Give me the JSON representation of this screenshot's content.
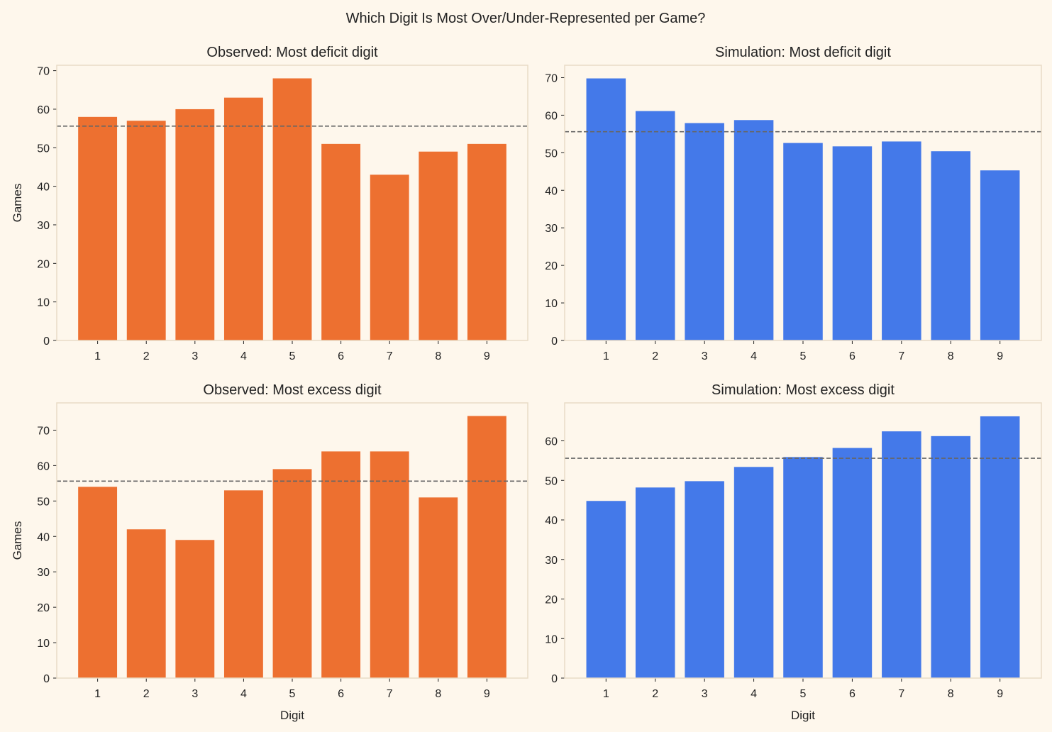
{
  "suptitle": "Which Digit Is Most Over/Under-Represented per Game?",
  "colors": {
    "observed": "#ED7030",
    "simulation": "#4479E9",
    "mean_line": "#666666",
    "background": "#FEF7EC",
    "spine": "#E8DCC6"
  },
  "chart_data": [
    {
      "type": "bar",
      "title": "Observed: Most deficit digit",
      "xlabel": "",
      "ylabel": "Games",
      "categories": [
        "1",
        "2",
        "3",
        "4",
        "5",
        "6",
        "7",
        "8",
        "9"
      ],
      "values": [
        58,
        57,
        60,
        63,
        68,
        51,
        43,
        49,
        51
      ],
      "reference_line": 55.6,
      "ylim": [
        0,
        71.4
      ],
      "yticks": [
        0,
        10,
        20,
        30,
        40,
        50,
        60,
        70
      ],
      "color": "observed"
    },
    {
      "type": "bar",
      "title": "Simulation: Most deficit digit",
      "xlabel": "",
      "ylabel": "",
      "categories": [
        "1",
        "2",
        "3",
        "4",
        "5",
        "6",
        "7",
        "8",
        "9"
      ],
      "values": [
        69.8,
        61.1,
        57.9,
        58.7,
        52.6,
        51.7,
        53.0,
        50.4,
        45.3
      ],
      "reference_line": 55.6,
      "ylim": [
        0,
        73.3
      ],
      "yticks": [
        0,
        10,
        20,
        30,
        40,
        50,
        60,
        70
      ],
      "color": "simulation"
    },
    {
      "type": "bar",
      "title": "Observed: Most excess digit",
      "xlabel": "Digit",
      "ylabel": "Games",
      "categories": [
        "1",
        "2",
        "3",
        "4",
        "5",
        "6",
        "7",
        "8",
        "9"
      ],
      "values": [
        54,
        42,
        39,
        53,
        59,
        64,
        64,
        51,
        74
      ],
      "reference_line": 55.6,
      "ylim": [
        0,
        77.7
      ],
      "yticks": [
        0,
        10,
        20,
        30,
        40,
        50,
        60,
        70
      ],
      "color": "observed"
    },
    {
      "type": "bar",
      "title": "Simulation: Most excess digit",
      "xlabel": "Digit",
      "ylabel": "",
      "categories": [
        "1",
        "2",
        "3",
        "4",
        "5",
        "6",
        "7",
        "8",
        "9"
      ],
      "values": [
        44.8,
        48.2,
        49.8,
        53.4,
        55.9,
        58.2,
        62.4,
        61.2,
        66.2
      ],
      "reference_line": 55.6,
      "ylim": [
        0,
        69.6
      ],
      "yticks": [
        0,
        10,
        20,
        30,
        40,
        50,
        60
      ],
      "color": "simulation"
    }
  ]
}
